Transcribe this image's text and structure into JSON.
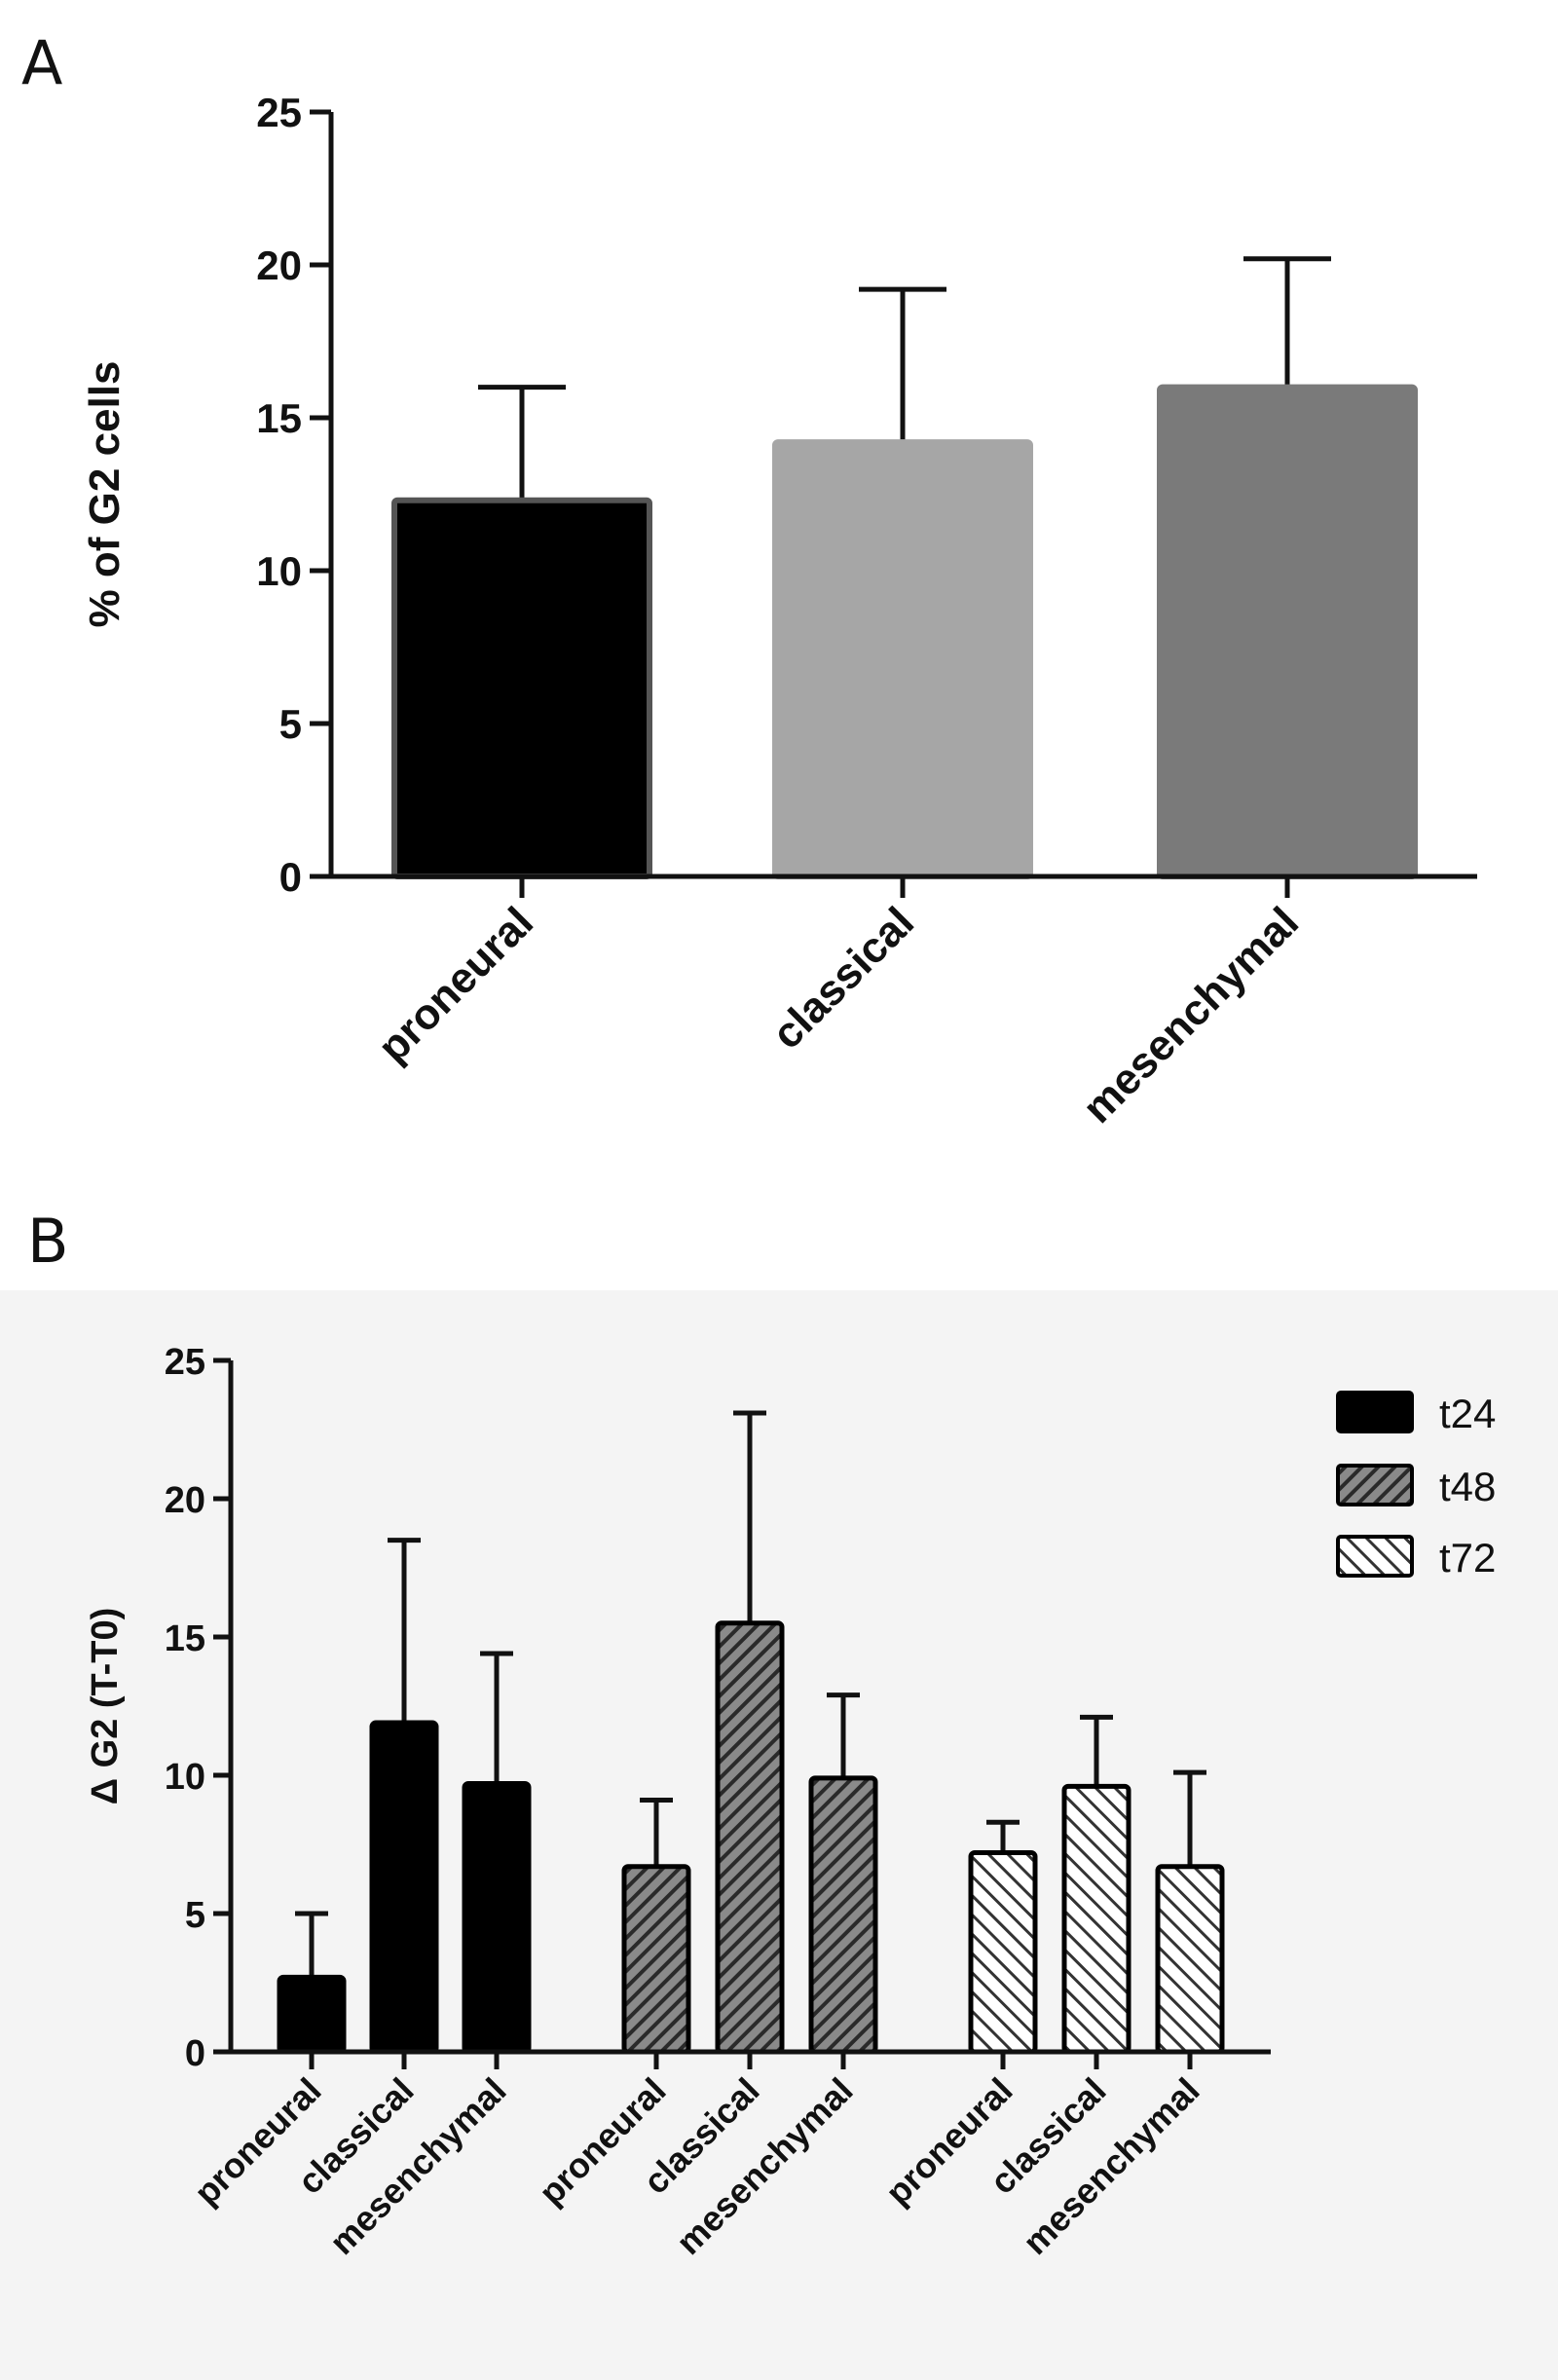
{
  "figure": {
    "panel_labels": [
      "A",
      "B"
    ]
  },
  "chart_data": [
    {
      "panel": "A",
      "type": "bar",
      "title": "",
      "xlabel": "",
      "ylabel": "% of G2 cells",
      "ylim": [
        0,
        25
      ],
      "yticks": [
        0,
        5,
        10,
        15,
        20,
        25
      ],
      "categories": [
        "proneural",
        "classical",
        "mesenchymal"
      ],
      "values": [
        12.3,
        14.2,
        16.0
      ],
      "errors": [
        3.7,
        5.0,
        4.2
      ],
      "colors": [
        "#000000",
        "#a6a6a6",
        "#7a7a7a"
      ],
      "grid": false
    },
    {
      "panel": "B",
      "type": "bar",
      "title": "",
      "xlabel": "",
      "ylabel": "Δ G2 (T-T0)",
      "ylim": [
        0,
        25
      ],
      "yticks": [
        0,
        5,
        10,
        15,
        20,
        25
      ],
      "categories": [
        "proneural",
        "classical",
        "mesenchymal"
      ],
      "series": [
        {
          "name": "t24",
          "pattern": "solid",
          "color": "#000000",
          "values": [
            2.7,
            11.9,
            9.7
          ],
          "errors": [
            2.3,
            6.6,
            4.7
          ]
        },
        {
          "name": "t48",
          "pattern": "hatch-dark",
          "color": "#808080",
          "values": [
            6.7,
            15.5,
            9.9
          ],
          "errors": [
            2.4,
            7.6,
            3.0
          ]
        },
        {
          "name": "t72",
          "pattern": "hatch-light",
          "color": "#ffffff",
          "values": [
            7.2,
            9.6,
            6.7
          ],
          "errors": [
            1.1,
            2.5,
            3.4
          ]
        }
      ],
      "legend_position": "top-right",
      "grid": false
    }
  ]
}
